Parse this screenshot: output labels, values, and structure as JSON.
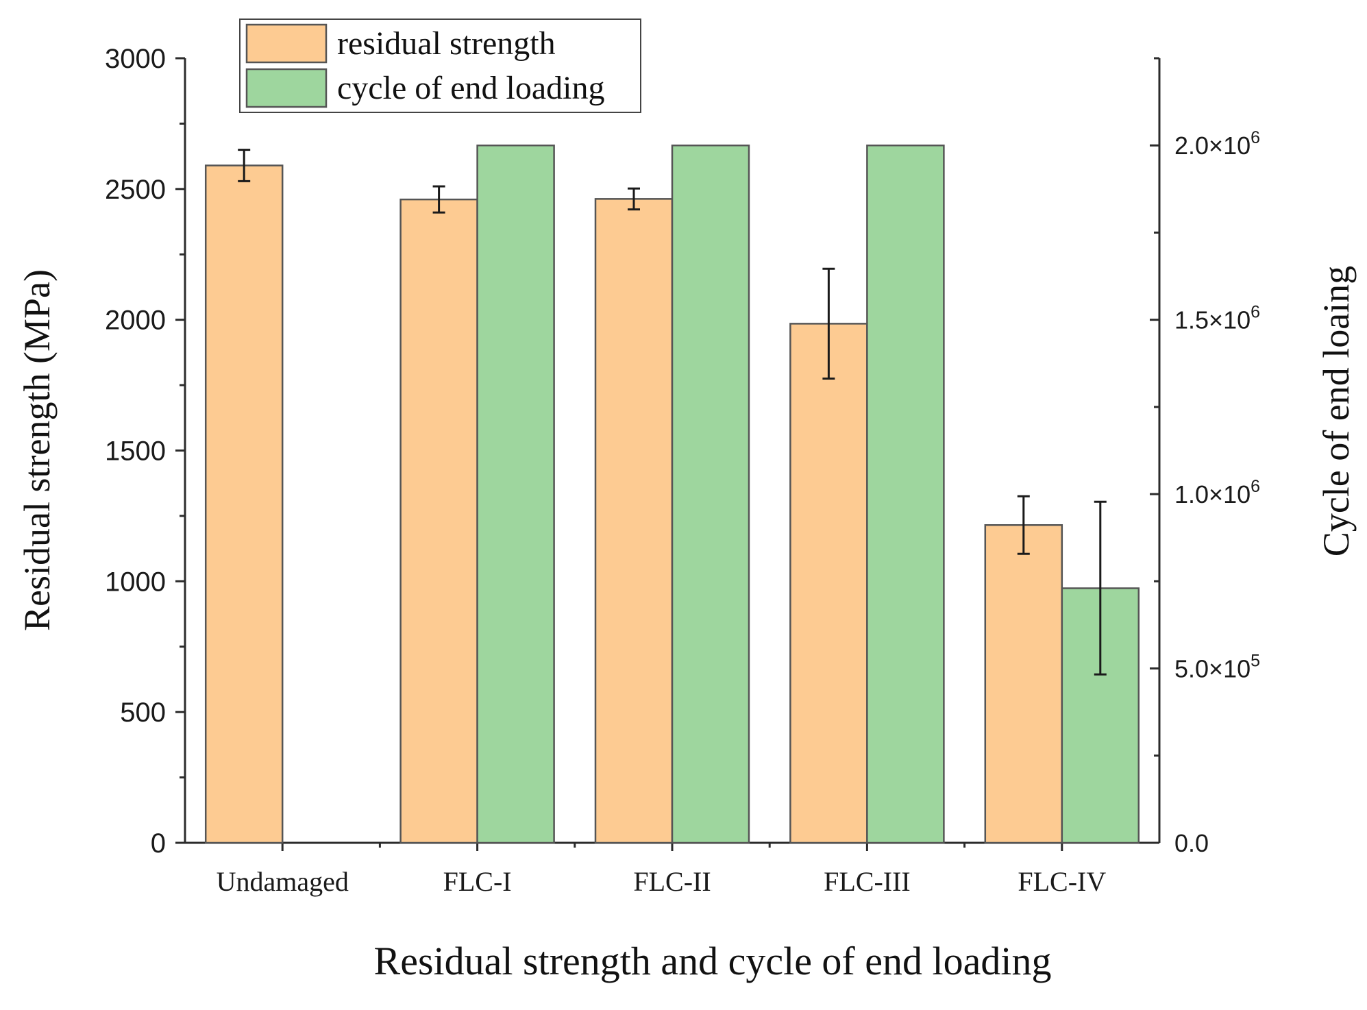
{
  "chart_data": {
    "type": "bar",
    "xlabel": "Residual strength and cycle of end loading",
    "ylabel": "Residual strength (MPa)",
    "y2label": "Cycle of end loaing",
    "categories": [
      "Undamaged",
      "FLC-I",
      "FLC-II",
      "FLC-III",
      "FLC-IV"
    ],
    "ylim": [
      0,
      3000
    ],
    "y2lim": [
      0,
      2250000
    ],
    "yticks": [
      0,
      500,
      1000,
      1500,
      2000,
      2500,
      3000
    ],
    "y2ticks": [
      {
        "value": 0,
        "label": "0.0"
      },
      {
        "value": 500000,
        "label": "5.0×10",
        "exp": "5"
      },
      {
        "value": 1000000,
        "label": "1.0×10",
        "exp": "6"
      },
      {
        "value": 1500000,
        "label": "1.5×10",
        "exp": "6"
      },
      {
        "value": 2000000,
        "label": "2.0×10",
        "exp": "6"
      }
    ],
    "series": [
      {
        "name": "residual strength",
        "axis": "left",
        "color": "#FDCB92",
        "values": [
          2590,
          2460,
          2462,
          1985,
          1215
        ],
        "err_low": [
          2530,
          2410,
          2422,
          1775,
          1105
        ],
        "err_high": [
          2650,
          2510,
          2502,
          2195,
          1325
        ]
      },
      {
        "name": "cycle of end loading",
        "axis": "right",
        "color": "#9ED69E",
        "values": [
          null,
          2000000,
          2000000,
          2000000,
          730000
        ],
        "err_low": [
          null,
          null,
          null,
          null,
          483000
        ],
        "err_high": [
          null,
          null,
          null,
          null,
          978000
        ]
      }
    ],
    "legend_position": "top-left"
  }
}
